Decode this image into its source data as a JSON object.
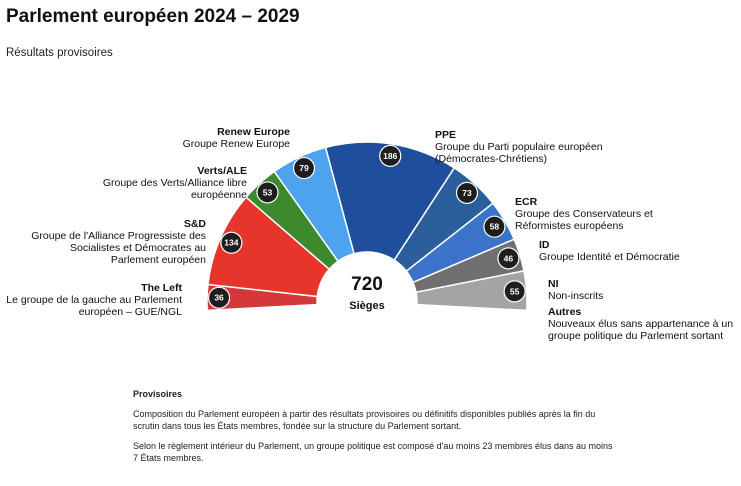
{
  "title": "Parlement européen 2024 – 2029",
  "subtitle": "Résultats provisoires",
  "chart_data": {
    "type": "pie",
    "style": "hemicycle",
    "total": 720,
    "total_label": "Sièges",
    "groups": [
      {
        "abbr": "The Left",
        "name": "Le groupe de la gauche au Parlement européen – GUE/NGL",
        "seats": 36,
        "color": "#d4383a"
      },
      {
        "abbr": "S&D",
        "name": "Groupe de l'Alliance Progressiste des Socialistes et Démocrates au Parlement européen",
        "seats": 134,
        "color": "#e8352b"
      },
      {
        "abbr": "Verts/ALE",
        "name": "Groupe des Verts/Alliance libre européenne",
        "seats": 53,
        "color": "#3c8a2e"
      },
      {
        "abbr": "Renew Europe",
        "name": "Groupe Renew Europe",
        "seats": 79,
        "color": "#4ea3ef"
      },
      {
        "abbr": "PPE",
        "name": "Groupe du Parti populaire européen (Démocrates-Chrétiens)",
        "seats": 186,
        "color": "#1f4e9c"
      },
      {
        "abbr": "ECR",
        "name": "Groupe des Conservateurs et Réformistes européens",
        "seats": 73,
        "color": "#2b5f9b"
      },
      {
        "abbr": "ID",
        "name": "Groupe Identité et Démocratie",
        "seats": 58,
        "color": "#3a73c9"
      },
      {
        "abbr": "NI",
        "name": "Non-inscrits",
        "seats": 46,
        "color": "#707070"
      },
      {
        "abbr": "Autres",
        "name": "Nouveaux élus sans appartenance à un groupe politique du Parlement sortant",
        "seats": 55,
        "color": "#a4a4a4"
      }
    ]
  },
  "notes": {
    "heading": "Provisoires",
    "paragraph1": "Composition du Parlement européen à partir des résultats provisoires ou définitifs disponibles publiés après la fin du scrutin dans tous les États membres, fondée sur la structure du Parlement sortant.",
    "paragraph2": "Selon le règlement intérieur du Parlement, un groupe politique est composé d'au moins 23 membres élus dans au moins 7 États membres."
  }
}
